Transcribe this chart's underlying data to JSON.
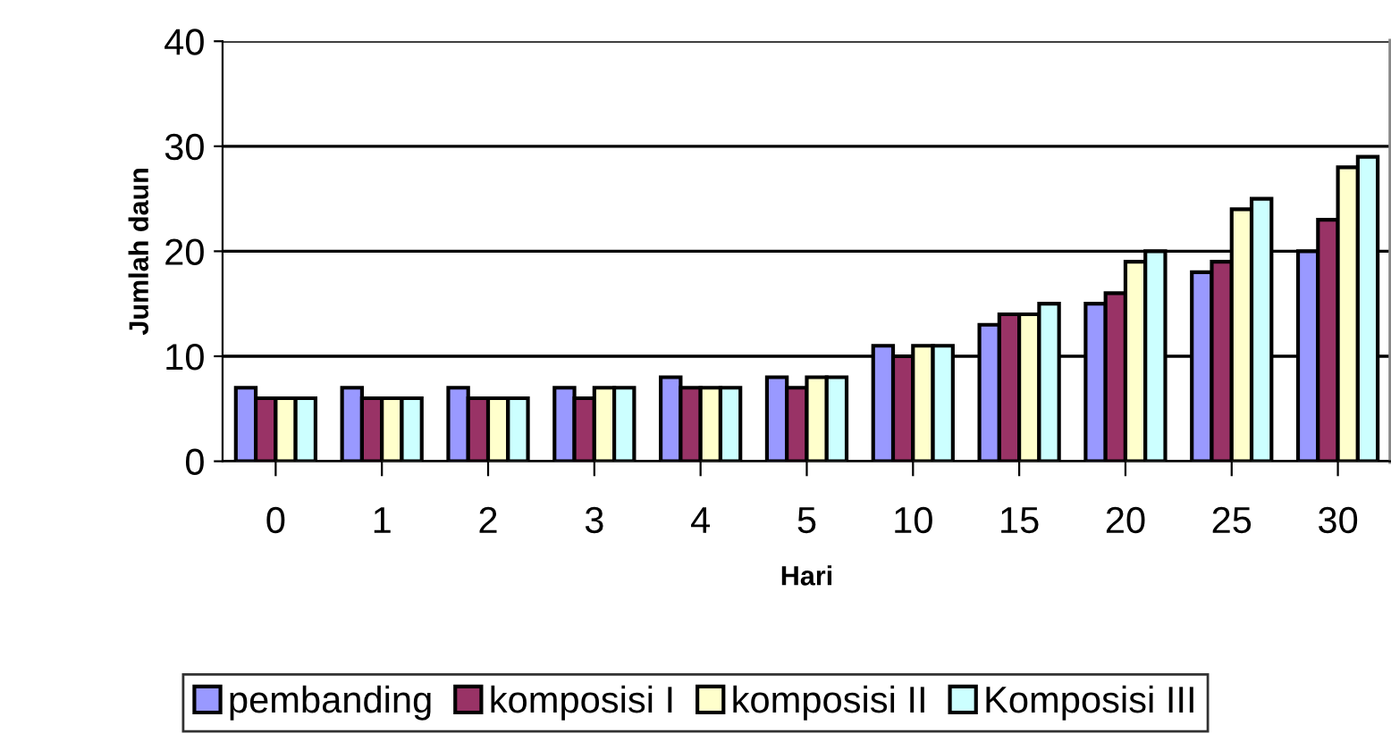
{
  "chart_data": {
    "type": "bar",
    "xlabel": "Hari",
    "ylabel": "Jumlah daun",
    "categories": [
      "0",
      "1",
      "2",
      "3",
      "4",
      "5",
      "10",
      "15",
      "20",
      "25",
      "30"
    ],
    "series": [
      {
        "name": "pembanding",
        "color": "#9999ff",
        "values": [
          7,
          7,
          7,
          7,
          8,
          8,
          11,
          13,
          15,
          18,
          20
        ]
      },
      {
        "name": "komposisi I",
        "color": "#993366",
        "values": [
          6,
          6,
          6,
          6,
          7,
          7,
          10,
          14,
          16,
          19,
          23
        ]
      },
      {
        "name": "komposisi II",
        "color": "#ffffcc",
        "values": [
          6,
          6,
          6,
          7,
          7,
          8,
          11,
          14,
          19,
          24,
          28
        ]
      },
      {
        "name": "Komposisi III",
        "color": "#ccffff",
        "values": [
          6,
          6,
          6,
          7,
          7,
          8,
          11,
          15,
          20,
          25,
          29
        ]
      }
    ],
    "ylim": [
      0,
      40
    ],
    "yticks": [
      0,
      10,
      20,
      30,
      40
    ],
    "grid": "y",
    "legend": "bottom"
  }
}
